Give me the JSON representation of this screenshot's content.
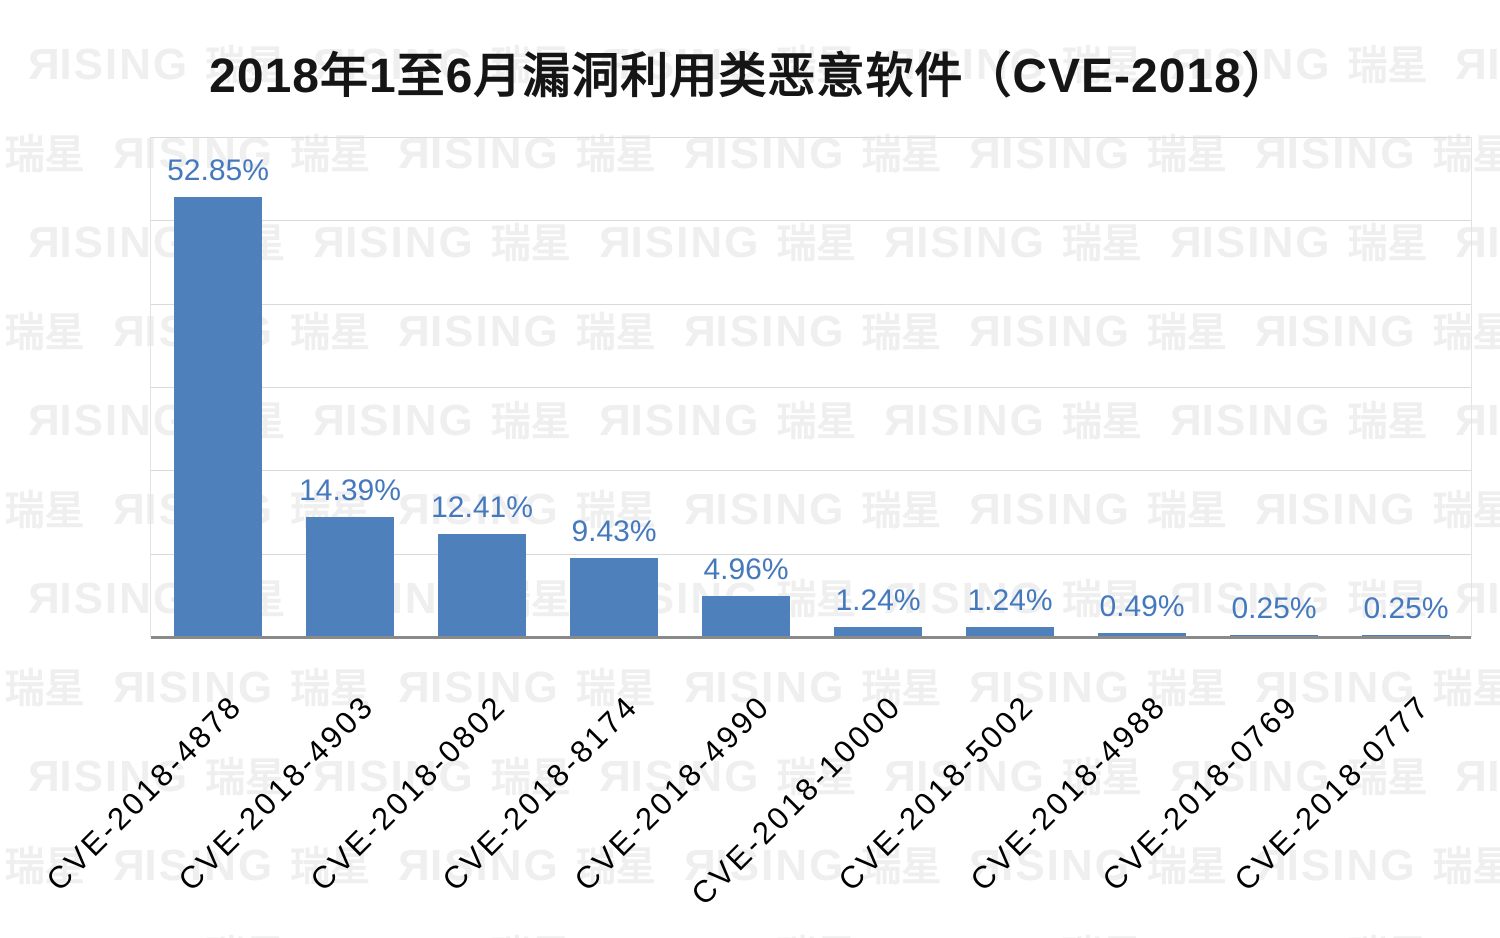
{
  "title": "2018年1至6月漏洞利用类恶意软件（CVE-2018）",
  "watermark": {
    "latin_first_letter": "R",
    "latin_rest": "ISING",
    "cn": "瑞星"
  },
  "chart_data": {
    "type": "bar",
    "title": "2018年1至6月漏洞利用类恶意软件（CVE-2018）",
    "categories": [
      "CVE-2018-4878",
      "CVE-2018-4903",
      "CVE-2018-0802",
      "CVE-2018-8174",
      "CVE-2018-4990",
      "CVE-2018-10000",
      "CVE-2018-5002",
      "CVE-2018-4988",
      "CVE-2018-0769",
      "CVE-2018-0777"
    ],
    "values": [
      52.85,
      14.39,
      12.41,
      9.43,
      4.96,
      1.24,
      1.24,
      0.49,
      0.25,
      0.25
    ],
    "value_labels": [
      "52.85%",
      "14.39%",
      "12.41%",
      "9.43%",
      "4.96%",
      "1.24%",
      "1.24%",
      "0.49%",
      "0.25%",
      "0.25%"
    ],
    "xlabel": "",
    "ylabel": "",
    "ylim": [
      0,
      60
    ],
    "gridline_step": 10,
    "grid_on": true,
    "legend": "none",
    "bar_color": "#4e80bc",
    "label_color": "#4579bd",
    "grid_color": "#d9d9d9",
    "axis_color": "#8a8a8a"
  }
}
